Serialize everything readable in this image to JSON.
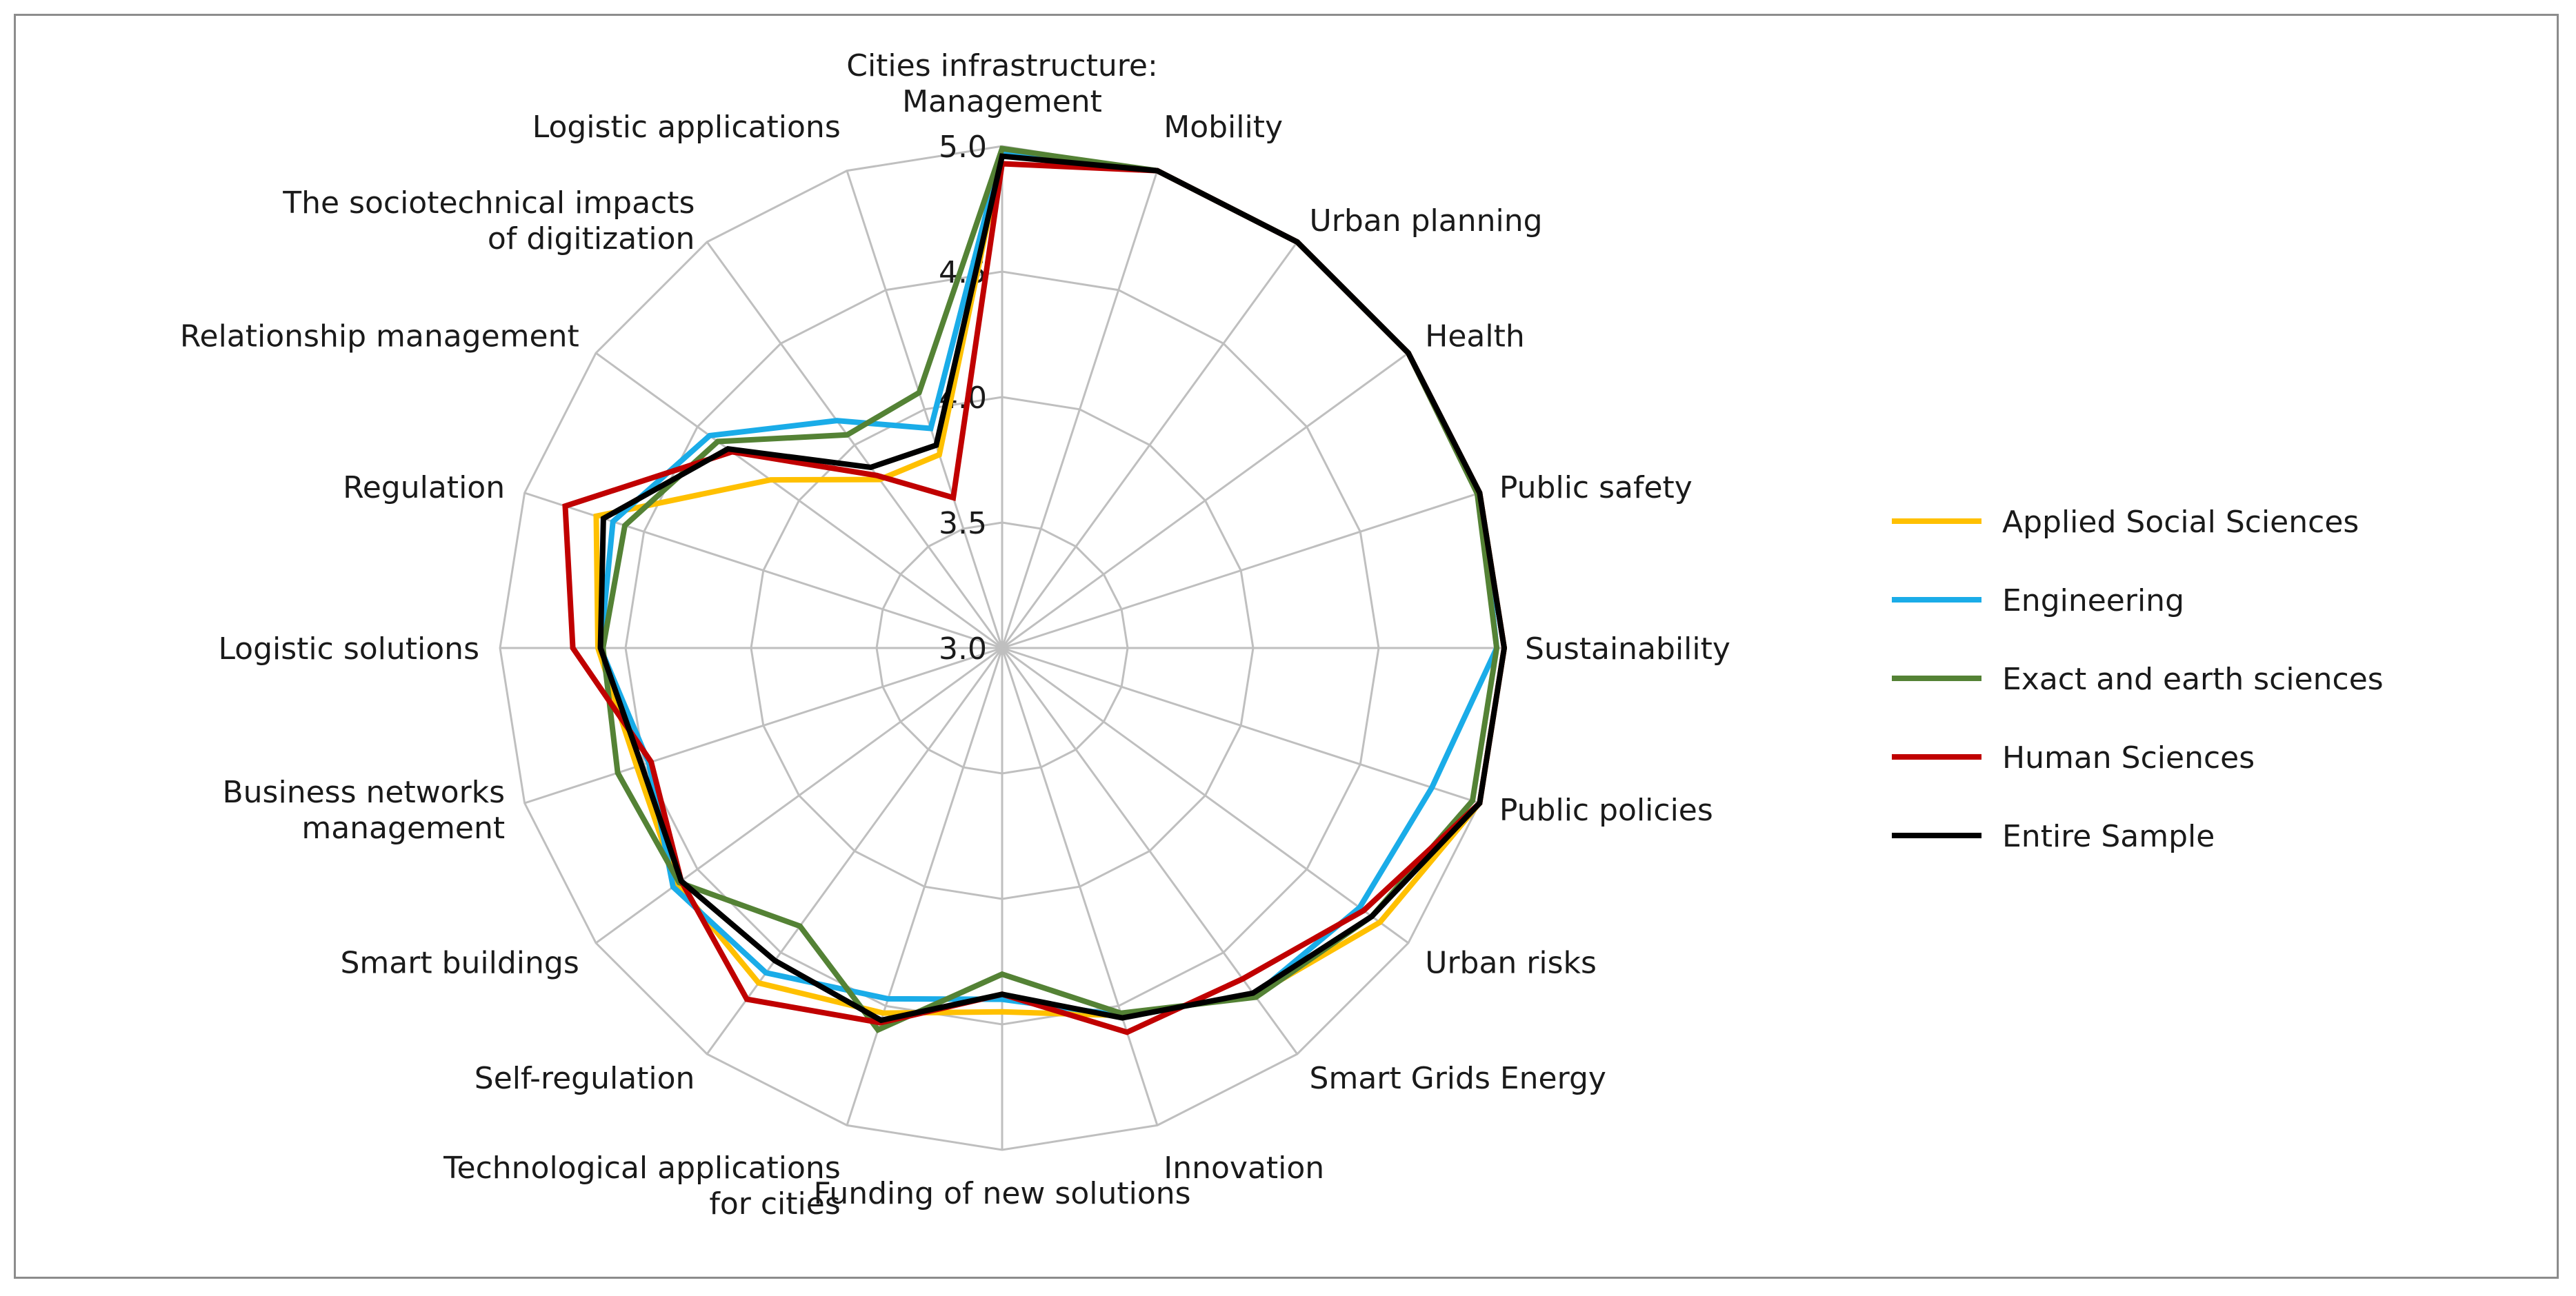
{
  "chart_data": {
    "type": "radar",
    "title": "",
    "categories": [
      [
        "Cities infrastructure:",
        "Management"
      ],
      [
        "Mobility"
      ],
      [
        "Urban planning"
      ],
      [
        "Health"
      ],
      [
        "Public safety"
      ],
      [
        "Sustainability"
      ],
      [
        "Public policies"
      ],
      [
        "Urban risks"
      ],
      [
        "Smart Grids Energy"
      ],
      [
        "Innovation"
      ],
      [
        "Funding of new solutions"
      ],
      [
        "Technological applications",
        "for cities"
      ],
      [
        "Self-regulation"
      ],
      [
        "Smart buildings"
      ],
      [
        "Business networks",
        "management"
      ],
      [
        "Logistic solutions"
      ],
      [
        "Regulation"
      ],
      [
        "Relationship management"
      ],
      [
        "The sociotechnical impacts",
        "of digitization"
      ],
      [
        "Logistic applications"
      ]
    ],
    "rlim": [
      3.0,
      5.0
    ],
    "ticks": [
      3.0,
      3.5,
      4.0,
      4.5,
      5.0
    ],
    "tick_labels": [
      "3.0",
      "3.5",
      "4.0",
      "4.5",
      "5.0"
    ],
    "series": [
      {
        "name": "Applied Social Sciences",
        "color": "#FFC000",
        "values": [
          4.97,
          5.0,
          5.0,
          5.0,
          5.0,
          5.0,
          5.0,
          4.86,
          4.71,
          4.54,
          4.45,
          4.53,
          4.65,
          4.6,
          4.53,
          4.61,
          4.7,
          4.14,
          3.83,
          3.81
        ]
      },
      {
        "name": "Engineering",
        "color": "#1AACE8",
        "values": [
          4.98,
          5.0,
          5.0,
          5.0,
          5.0,
          4.97,
          4.8,
          4.76,
          4.71,
          4.54,
          4.4,
          4.47,
          4.6,
          4.62,
          4.48,
          4.6,
          4.63,
          4.44,
          4.12,
          3.92
        ]
      },
      {
        "name": "Exact and earth sciences",
        "color": "#548235",
        "values": [
          4.99,
          5.0,
          5.0,
          5.0,
          4.99,
          4.97,
          4.97,
          4.82,
          4.72,
          4.53,
          4.3,
          4.6,
          4.37,
          4.59,
          4.61,
          4.59,
          4.58,
          4.4,
          4.05,
          4.07
        ]
      },
      {
        "name": "Human Sciences",
        "color": "#C00000",
        "values": [
          4.93,
          5.0,
          5.0,
          5.0,
          5.0,
          5.0,
          5.0,
          4.78,
          4.63,
          4.61,
          4.38,
          4.57,
          4.73,
          4.58,
          4.47,
          4.71,
          4.83,
          4.33,
          3.85,
          3.63
        ]
      },
      {
        "name": "Entire Sample",
        "color": "#000000",
        "values": [
          4.96,
          5.0,
          5.0,
          5.0,
          5.0,
          5.0,
          5.0,
          4.82,
          4.7,
          4.55,
          4.38,
          4.56,
          4.54,
          4.58,
          4.51,
          4.6,
          4.67,
          4.35,
          3.89,
          3.85
        ]
      }
    ],
    "legend_position": "right"
  }
}
